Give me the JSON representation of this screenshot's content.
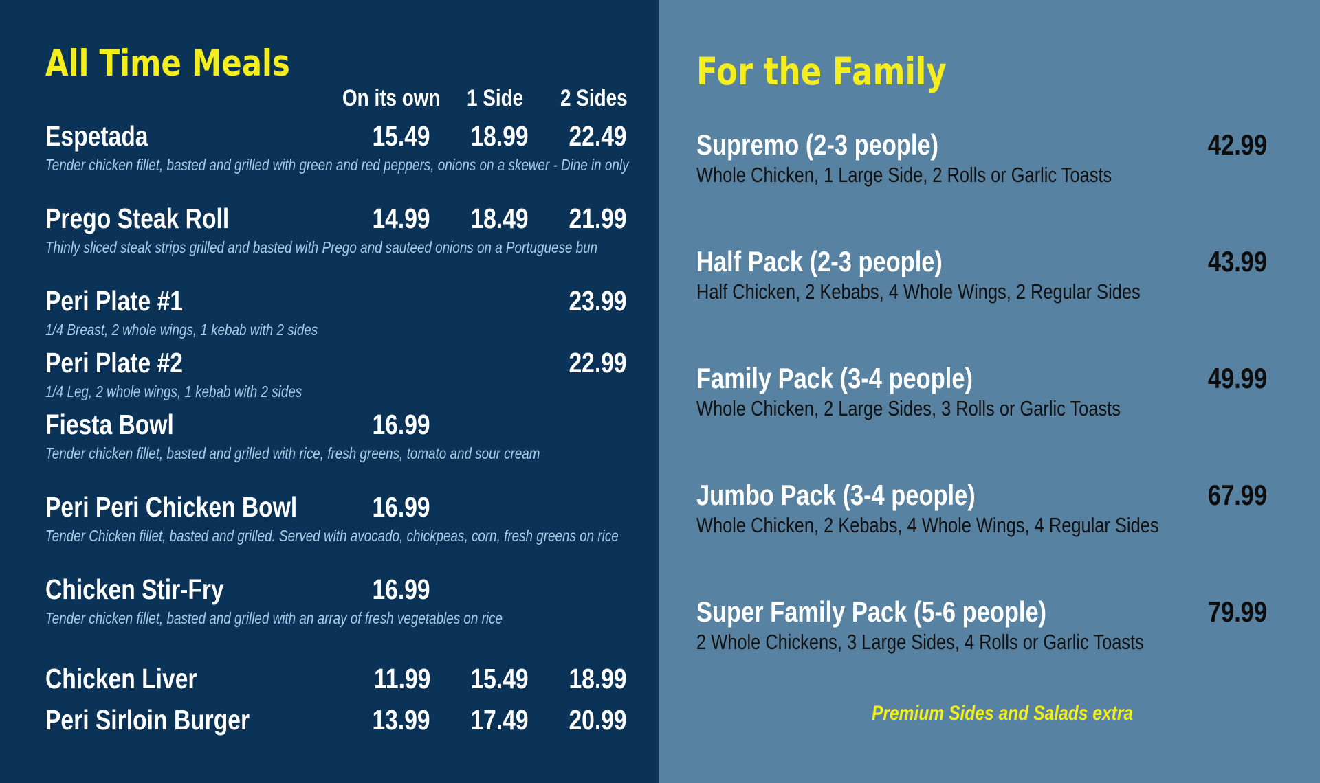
{
  "all_time": {
    "title": "All Time Meals",
    "columns": [
      "On its own",
      "1 Side",
      "2 Sides"
    ],
    "items": [
      {
        "name": "Espetada",
        "own": "15.49",
        "one": "18.99",
        "two": "22.49",
        "desc": "Tender chicken fillet, basted and grilled with green\nand red peppers, onions on a skewer - Dine in only"
      },
      {
        "name": "Prego Steak Roll",
        "own": "14.99",
        "one": "18.49",
        "two": "21.99",
        "desc": "Thinly sliced steak strips grilled and basted with\nPrego and sauteed onions on a Portuguese bun"
      },
      {
        "name": "Peri Plate #1",
        "own": "",
        "one": "",
        "two": "23.99",
        "desc": "1/4 Breast, 2 whole wings, 1 kebab with 2 sides"
      },
      {
        "name": "Peri Plate #2",
        "own": "",
        "one": "",
        "two": "22.99",
        "desc": "1/4 Leg, 2 whole wings, 1 kebab with 2 sides"
      },
      {
        "name": "Fiesta Bowl",
        "own": "16.99",
        "one": "",
        "two": "",
        "desc": "Tender chicken fillet, basted and grilled\nwith rice, fresh greens, tomato and sour cream"
      },
      {
        "name": "Peri Peri Chicken Bowl",
        "own": "16.99",
        "one": "",
        "two": "",
        "desc": "Tender Chicken fillet, basted and grilled. Served\nwith avocado, chickpeas, corn, fresh greens on rice"
      },
      {
        "name": "Chicken Stir-Fry",
        "own": "16.99",
        "one": "",
        "two": "",
        "desc": "Tender chicken fillet, basted and grilled\nwith an array of fresh vegetables on rice"
      },
      {
        "name": "Chicken Liver",
        "own": "11.99",
        "one": "15.49",
        "two": "18.99",
        "desc": ""
      },
      {
        "name": "Peri Sirloin Burger",
        "own": "13.99",
        "one": "17.49",
        "two": "20.99",
        "desc": ""
      }
    ]
  },
  "family": {
    "title": "For the Family",
    "items": [
      {
        "name": "Supremo (2-3 people)",
        "price": "42.99",
        "desc": "Whole Chicken, 1 Large Side,\n2 Rolls or Garlic Toasts"
      },
      {
        "name": "Half Pack (2-3 people)",
        "price": "43.99",
        "desc": "Half Chicken, 2 Kebabs, 4 Whole Wings,\n2 Regular Sides"
      },
      {
        "name": "Family Pack (3-4 people)",
        "price": "49.99",
        "desc": "Whole Chicken, 2 Large Sides,\n3 Rolls or Garlic Toasts"
      },
      {
        "name": "Jumbo Pack (3-4 people)",
        "price": "67.99",
        "desc": "Whole Chicken, 2 Kebabs, 4 Whole Wings,\n4 Regular Sides"
      },
      {
        "name": "Super Family Pack (5-6 people)",
        "price": "79.99",
        "desc": "2 Whole Chickens, 3 Large Sides,\n4 Rolls or Garlic Toasts"
      }
    ],
    "footnote": "Premium Sides and Salads extra"
  },
  "colors": {
    "left_bg": "#0b3357",
    "right_bg": "#5882a1",
    "accent_yellow": "#f4ee1f",
    "description_blue": "#a9cde9"
  }
}
